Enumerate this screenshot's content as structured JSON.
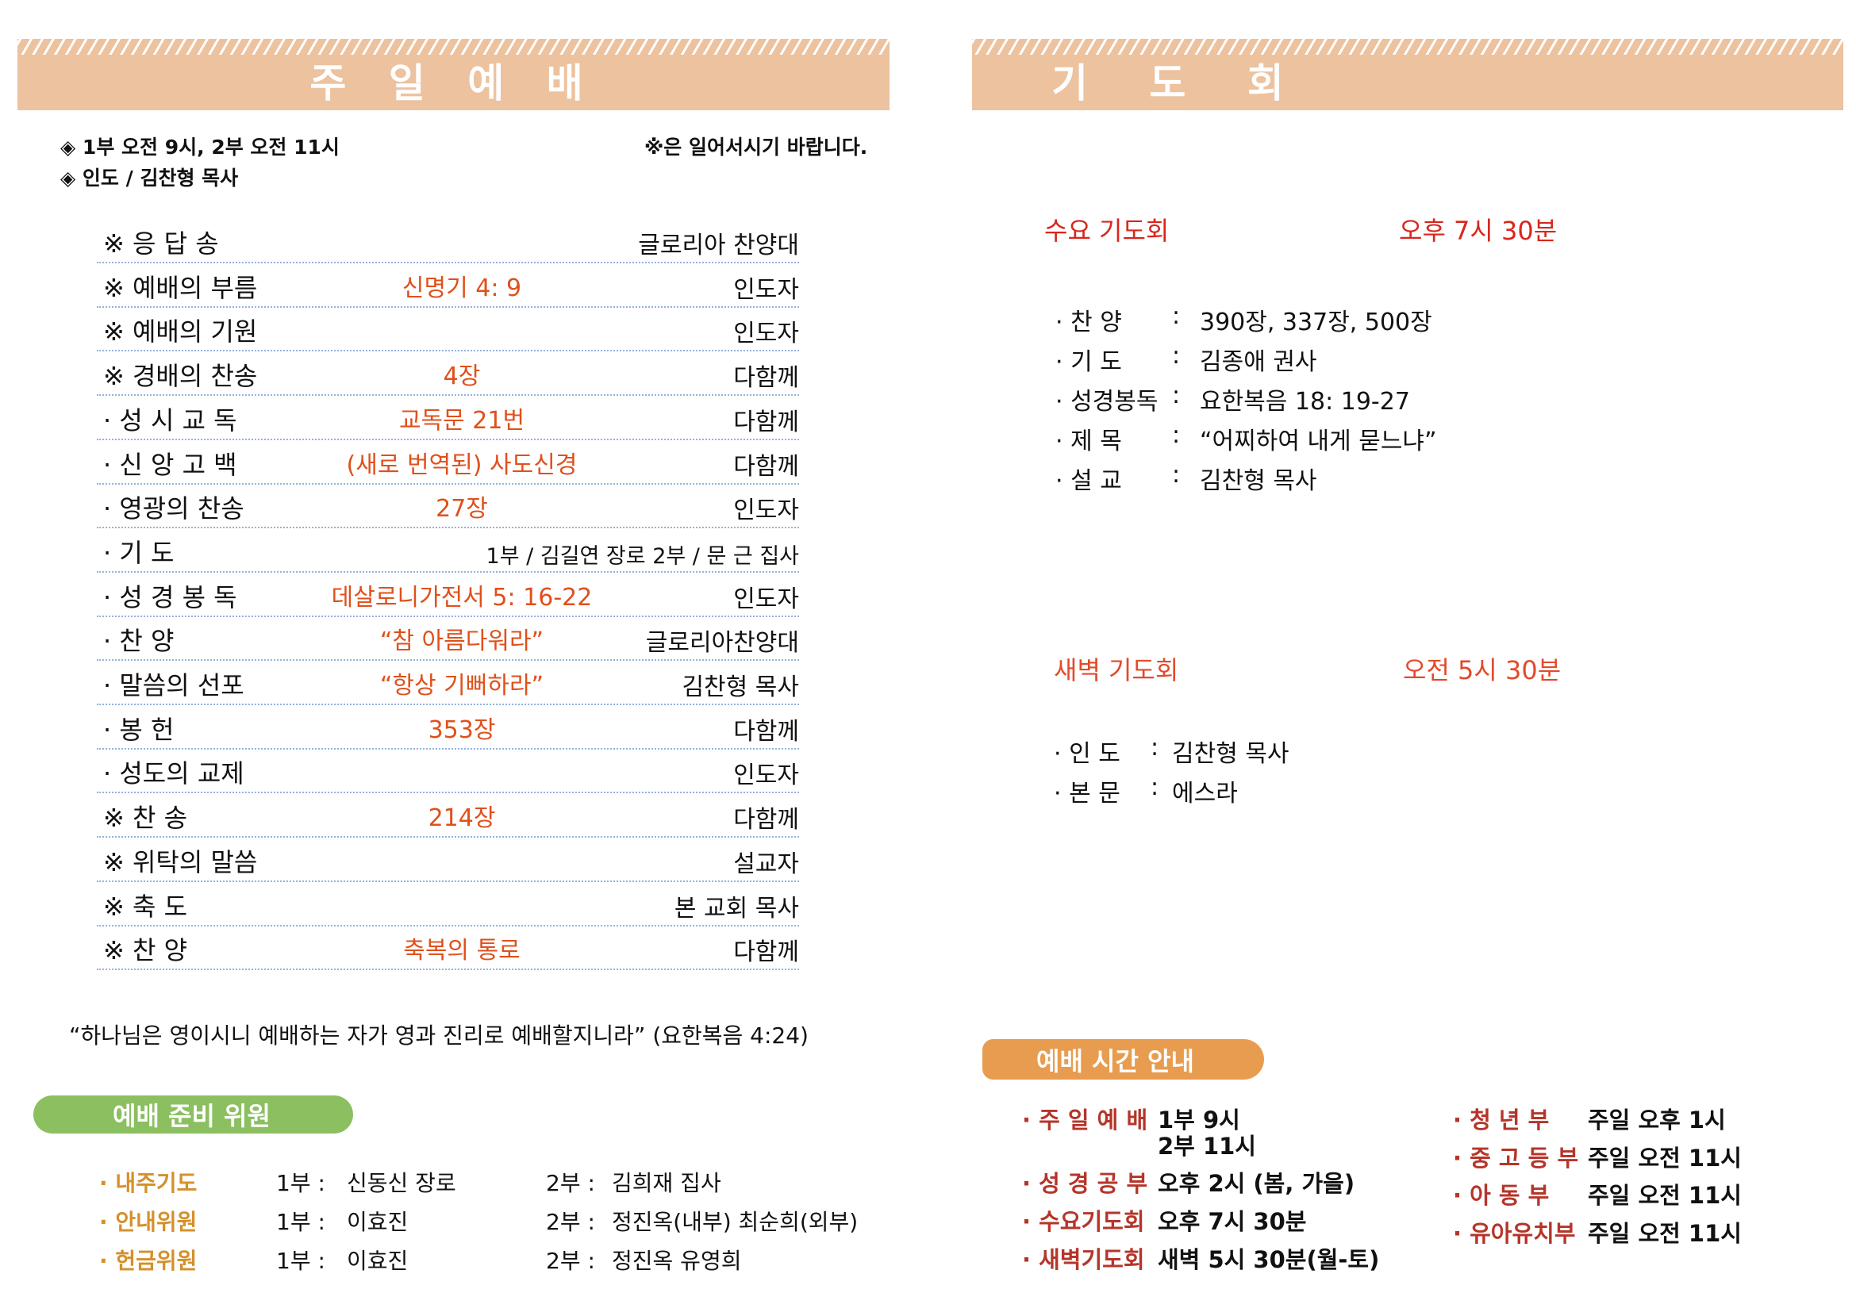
{
  "left": {
    "title": "주 일 예 배",
    "info1": "◈ 1부 오전 9시, 2부 오전 11시",
    "info2": "◈ 인도 / 김찬형 목사",
    "note": "※은 일어서시기 바랍니다.",
    "order": [
      {
        "label": "※ 응 답 송",
        "mid": "",
        "right": "글로리아 찬양대"
      },
      {
        "label": "※ 예배의 부름",
        "mid": "신명기 4: 9",
        "right": "인도자"
      },
      {
        "label": "※ 예배의 기원",
        "mid": "",
        "right": "인도자"
      },
      {
        "label": "※ 경배의 찬송",
        "mid": "4장",
        "right": "다함께"
      },
      {
        "label": "· 성 시 교 독",
        "mid": "교독문 21번",
        "right": "다함께"
      },
      {
        "label": "· 신 앙 고 백",
        "mid": "(새로 번역된) 사도신경",
        "right": "다함께"
      },
      {
        "label": "· 영광의 찬송",
        "mid": "27장",
        "right": "인도자"
      },
      {
        "label": "· 기  도",
        "mid": "",
        "right": "1부 / 김길연 장로   2부 / 문  근 집사"
      },
      {
        "label": "· 성 경 봉 독",
        "mid": "데살로니가전서 5: 16-22",
        "right": "인도자"
      },
      {
        "label": "· 찬  양",
        "mid": "“참 아름다워라”",
        "right": "글로리아찬양대"
      },
      {
        "label": "· 말씀의 선포",
        "mid": "“항상 기뻐하라”",
        "right": "김찬형 목사"
      },
      {
        "label": "· 봉  헌",
        "mid": "353장",
        "right": "다함께"
      },
      {
        "label": "· 성도의 교제",
        "mid": "",
        "right": "인도자"
      },
      {
        "label": "※ 찬  송",
        "mid": "214장",
        "right": "다함께"
      },
      {
        "label": "※ 위탁의 말씀",
        "mid": "",
        "right": "설교자"
      },
      {
        "label": "※ 축  도",
        "mid": "",
        "right": "본 교회 목사"
      },
      {
        "label": "※ 찬  양",
        "mid": "축복의 통로",
        "right": "다함께"
      }
    ],
    "verse": "“하나님은 영이시니 예배하는 자가 영과 진리로 예배할지니라” (요한복음 4:24)",
    "committee_title": "예배 준비 위원",
    "committee": [
      {
        "label": "· 내주기도",
        "p1": "1부 :",
        "v1": "신동신 장로",
        "p2": "2부 :",
        "v2": "김희재 집사"
      },
      {
        "label": "· 안내위원",
        "p1": "1부 :",
        "v1": "이효진",
        "p2": "2부 :",
        "v2": "정진옥(내부)  최순희(외부)"
      },
      {
        "label": "· 헌금위원",
        "p1": "1부 :",
        "v1": "이효진",
        "p2": "2부 :",
        "v2": "정진옥 유영희"
      }
    ]
  },
  "right": {
    "title": "기  도  회",
    "wed": {
      "title": "수요 기도회",
      "time": "오후 7시 30분",
      "items": [
        {
          "label": "· 찬      양",
          "value": "390장, 337장, 500장"
        },
        {
          "label": "· 기      도",
          "value": "김종애 권사"
        },
        {
          "label": "· 성경봉독",
          "value": "요한복음 18: 19-27"
        },
        {
          "label": "· 제      목",
          "value": "“어찌하여 내게 묻느냐”"
        },
        {
          "label": "· 설      교",
          "value": "김찬형 목사"
        }
      ]
    },
    "dawn": {
      "title": "새벽 기도회",
      "time": "오전 5시 30분",
      "items": [
        {
          "label": "· 인    도",
          "value": "김찬형 목사"
        },
        {
          "label": "· 본    문",
          "value": "에스라"
        }
      ]
    },
    "schedule_title": "예배 시간 안내",
    "schedule_left": [
      {
        "label": "· 주 일 예 배",
        "value": "1부 9시",
        "sub": "1부"
      },
      {
        "label": "",
        "value": "2부 11시",
        "sub": "2부"
      },
      {
        "label": "· 성 경 공 부",
        "value": "오후 2시 (봄, 가을)"
      },
      {
        "label": "· 수요기도회",
        "value": "오후 7시 30분"
      },
      {
        "label": "· 새벽기도회",
        "value": "새벽 5시 30분(월-토)"
      }
    ],
    "schedule_right": [
      {
        "label": "· 청   년   부",
        "value": "주일 오후 1시"
      },
      {
        "label": "· 중 고 등 부",
        "value": "주일 오전 11시"
      },
      {
        "label": "· 아   동   부",
        "value": "주일 오전 11시"
      },
      {
        "label": "· 유아유치부",
        "value": "주일 오전 11시"
      }
    ]
  },
  "colors": {
    "banner": "#ecc29f",
    "highlight": "#e0501b",
    "wed": "#d9261c",
    "dawn": "#e34a2a",
    "green": "#8bbf60",
    "orange": "#e89c4f",
    "schedule_label": "#b5352a",
    "committee_label": "#d4902a"
  }
}
